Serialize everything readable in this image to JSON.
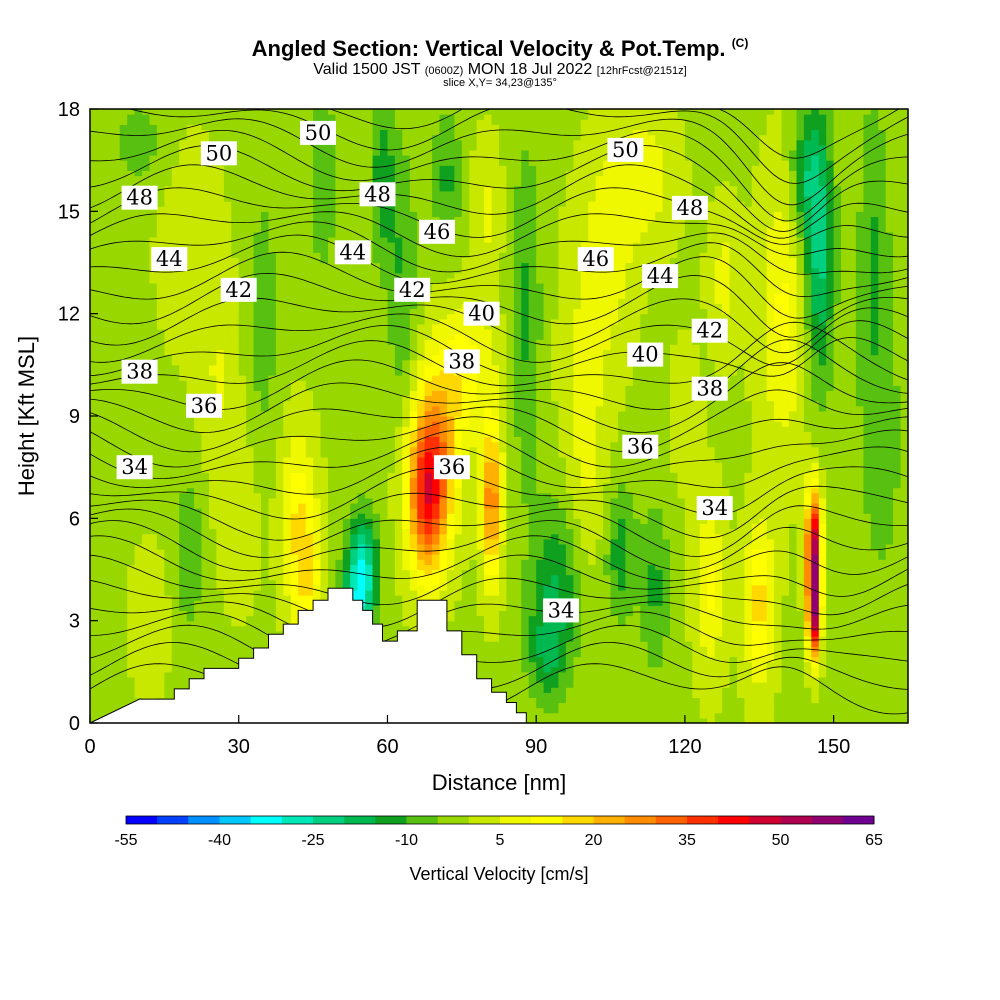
{
  "title": {
    "main": "Angled Section: Vertical Velocity & Pot.Temp.",
    "copyright": "(C)",
    "valid_prefix": "Valid 1500 JST",
    "valid_z": "(0600Z)",
    "valid_date": "MON 18 Jul 2022",
    "fcst": "[12hrFcst@2151z]",
    "slice": "slice X,Y= 34,23@135°"
  },
  "chart_data": {
    "type": "heatmap",
    "xlabel": "Distance [nm]",
    "ylabel": "Height [Kft MSL]",
    "xlim": [
      0,
      165
    ],
    "ylim": [
      0,
      18
    ],
    "x_ticks": [
      0,
      30,
      60,
      90,
      120,
      150
    ],
    "y_ticks": [
      0,
      3,
      6,
      9,
      12,
      15,
      18
    ],
    "colorbar": {
      "title": "Vertical Velocity [cm/s]",
      "min": -55,
      "step": 5,
      "tick_values": [
        -55,
        -40,
        -25,
        -10,
        5,
        20,
        35,
        50,
        65
      ],
      "colors": [
        "#0000ff",
        "#0040ff",
        "#0090ff",
        "#00c8ff",
        "#00ffff",
        "#00e8b8",
        "#00d080",
        "#00b850",
        "#10a020",
        "#58c010",
        "#98d800",
        "#c8e800",
        "#f0f800",
        "#ffff00",
        "#ffd800",
        "#ffb000",
        "#ff8c00",
        "#ff6000",
        "#ff3000",
        "#ff0000",
        "#d00030",
        "#b00050",
        "#900070",
        "#700090"
      ]
    },
    "theta_contours": [
      {
        "value": 34,
        "x": 9,
        "y": 7.5
      },
      {
        "value": 34,
        "x": 95,
        "y": 3.3
      },
      {
        "value": 34,
        "x": 126,
        "y": 6.3
      },
      {
        "value": 36,
        "x": 23,
        "y": 9.3
      },
      {
        "value": 36,
        "x": 73,
        "y": 7.5
      },
      {
        "value": 36,
        "x": 111,
        "y": 8.1
      },
      {
        "value": 38,
        "x": 10,
        "y": 10.3
      },
      {
        "value": 38,
        "x": 75,
        "y": 10.6
      },
      {
        "value": 38,
        "x": 125,
        "y": 9.8
      },
      {
        "value": 40,
        "x": 79,
        "y": 12.0
      },
      {
        "value": 40,
        "x": 112,
        "y": 10.8
      },
      {
        "value": 42,
        "x": 30,
        "y": 12.7
      },
      {
        "value": 42,
        "x": 65,
        "y": 12.7
      },
      {
        "value": 42,
        "x": 125,
        "y": 11.5
      },
      {
        "value": 44,
        "x": 16,
        "y": 13.6
      },
      {
        "value": 44,
        "x": 53,
        "y": 13.8
      },
      {
        "value": 44,
        "x": 115,
        "y": 13.1
      },
      {
        "value": 46,
        "x": 70,
        "y": 14.4
      },
      {
        "value": 46,
        "x": 102,
        "y": 13.6
      },
      {
        "value": 48,
        "x": 10,
        "y": 15.4
      },
      {
        "value": 48,
        "x": 58,
        "y": 15.5
      },
      {
        "value": 48,
        "x": 121,
        "y": 15.1
      },
      {
        "value": 50,
        "x": 26,
        "y": 16.7
      },
      {
        "value": 50,
        "x": 46,
        "y": 17.3
      },
      {
        "value": 50,
        "x": 108,
        "y": 16.8
      }
    ],
    "terrain_kft": [
      [
        0,
        0
      ],
      [
        10,
        0.7
      ],
      [
        17,
        0.7
      ],
      [
        17,
        1.0
      ],
      [
        20,
        1.0
      ],
      [
        20,
        1.3
      ],
      [
        23,
        1.3
      ],
      [
        23,
        1.6
      ],
      [
        30,
        1.6
      ],
      [
        30,
        1.9
      ],
      [
        33,
        1.9
      ],
      [
        33,
        2.2
      ],
      [
        36,
        2.2
      ],
      [
        36,
        2.6
      ],
      [
        39,
        2.6
      ],
      [
        39,
        2.9
      ],
      [
        42,
        2.9
      ],
      [
        42,
        3.3
      ],
      [
        45,
        3.3
      ],
      [
        45,
        3.6
      ],
      [
        48,
        3.6
      ],
      [
        48,
        3.95
      ],
      [
        53,
        3.95
      ],
      [
        53,
        3.6
      ],
      [
        55,
        3.6
      ],
      [
        55,
        3.3
      ],
      [
        57,
        3.3
      ],
      [
        57,
        2.9
      ],
      [
        59,
        2.9
      ],
      [
        59,
        2.4
      ],
      [
        62,
        2.4
      ],
      [
        62,
        2.7
      ],
      [
        66,
        2.7
      ],
      [
        66,
        3.6
      ],
      [
        72,
        3.6
      ],
      [
        72,
        2.7
      ],
      [
        75,
        2.7
      ],
      [
        75,
        2.0
      ],
      [
        78,
        2.0
      ],
      [
        78,
        1.3
      ],
      [
        81,
        1.3
      ],
      [
        81,
        0.9
      ],
      [
        84,
        0.9
      ],
      [
        84,
        0.6
      ],
      [
        86,
        0.6
      ],
      [
        86,
        0.3
      ],
      [
        88,
        0.3
      ],
      [
        88,
        0
      ]
    ]
  }
}
